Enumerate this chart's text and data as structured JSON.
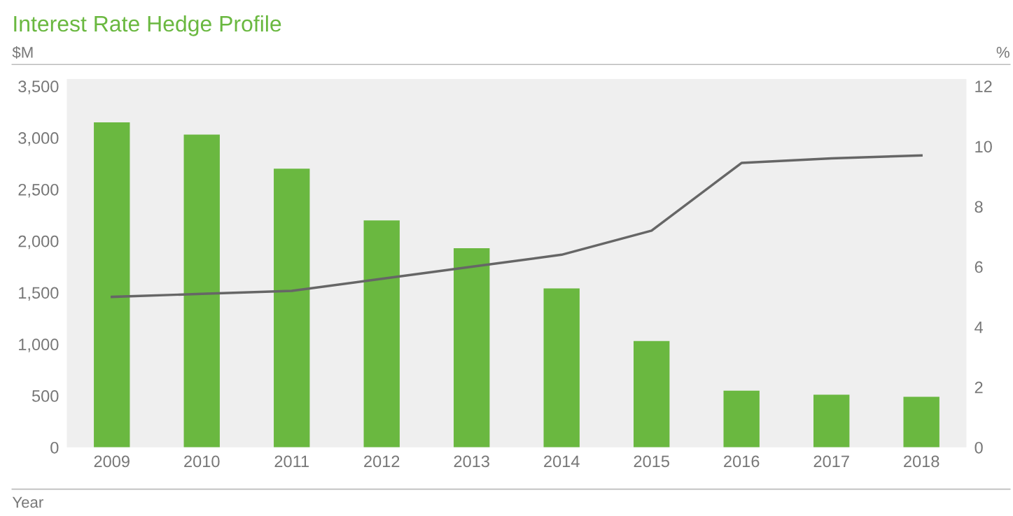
{
  "chart_data": {
    "type": "bar",
    "title": "Interest Rate Hedge Profile",
    "ylabel": "$M",
    "y2label": "%",
    "xlabel": "Year",
    "categories": [
      "2009",
      "2010",
      "2011",
      "2012",
      "2013",
      "2014",
      "2015",
      "2016",
      "2017",
      "2018"
    ],
    "series": [
      {
        "color": "#6ab840",
        "values": [
          3150,
          3030,
          2700,
          2200,
          1930,
          1540,
          1030,
          550,
          510,
          490
        ]
      },
      {
        "type": "line",
        "axis": "y2",
        "color": "#666666",
        "values": [
          5.0,
          5.1,
          5.2,
          5.6,
          6.0,
          6.4,
          7.2,
          9.45,
          9.6,
          9.7
        ]
      }
    ],
    "ylim": [
      0,
      3570
    ],
    "yticks": [
      0,
      500,
      {
        "value": 1000,
        "label": "1,000"
      },
      {
        "value": 1500,
        "label": "1,500"
      },
      {
        "value": 2000,
        "label": "2,000"
      },
      {
        "value": 2500,
        "label": "2,500"
      },
      {
        "value": 3000,
        "label": "3,000"
      },
      {
        "value": 3500,
        "label": "3,500"
      }
    ],
    "y2lim": [
      0,
      12.24
    ],
    "y2ticks": [
      0,
      2,
      4,
      6,
      8,
      10,
      12
    ],
    "grid": false,
    "marker": "none",
    "line_style": "solid"
  }
}
